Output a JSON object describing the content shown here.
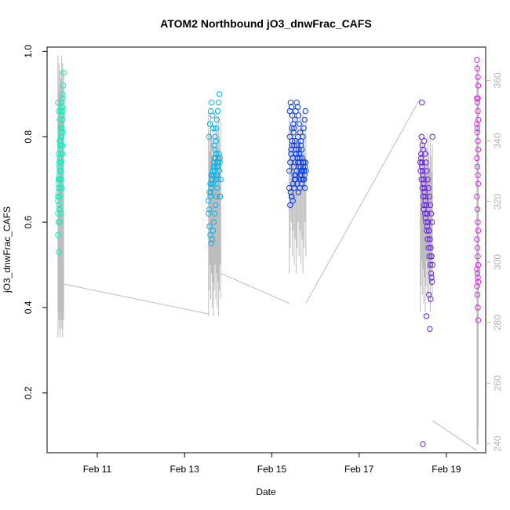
{
  "chart_data": {
    "type": "scatter",
    "title": "ATOM2 Northbound jO3_dnwFrac_CAFS",
    "xlabel": "Date",
    "ylabel": "jO3_dnwFrac_CAFS",
    "x_range_days": [
      9.85,
      19.9
    ],
    "y_range": [
      0.06,
      1.01
    ],
    "y2_range": [
      237,
      371
    ],
    "x_ticks": [
      {
        "day": 11,
        "label": "Feb 11"
      },
      {
        "day": 13,
        "label": "Feb 13"
      },
      {
        "day": 15,
        "label": "Feb 15"
      },
      {
        "day": 17,
        "label": "Feb 17"
      },
      {
        "day": 19,
        "label": "Feb 19"
      }
    ],
    "y_ticks": [
      {
        "value": 0.2,
        "label": "0.2"
      },
      {
        "value": 0.4,
        "label": "0.4"
      },
      {
        "value": 0.6,
        "label": "0.6"
      },
      {
        "value": 0.8,
        "label": "0.8"
      },
      {
        "value": 1.0,
        "label": "1.0"
      }
    ],
    "y2_ticks": [
      {
        "value": 240,
        "label": "240"
      },
      {
        "value": 260,
        "label": "260"
      },
      {
        "value": 280,
        "label": "280"
      },
      {
        "value": 300,
        "label": "300"
      },
      {
        "value": 320,
        "label": "320"
      },
      {
        "value": 340,
        "label": "340"
      },
      {
        "value": 360,
        "label": "360"
      }
    ],
    "grid": false,
    "colors": {
      "seg1": "#00f5c0",
      "seg2": "#00b4f0",
      "seg3": "#0a3cf0",
      "seg4": "#6a1cf0",
      "seg5": "#e020f0",
      "track": "#bdbdbd"
    },
    "series": [
      {
        "color_key": "seg1",
        "x": [
          10.1,
          10.11,
          10.12,
          10.13,
          10.14,
          10.15,
          10.16,
          10.17,
          10.18,
          10.19,
          10.2,
          10.21,
          10.1,
          10.11,
          10.12,
          10.13,
          10.14,
          10.15,
          10.16,
          10.17,
          10.18,
          10.19,
          10.2,
          10.21,
          10.1,
          10.12,
          10.14,
          10.16,
          10.18,
          10.2,
          10.11,
          10.13,
          10.15,
          10.17,
          10.19,
          10.21,
          10.1,
          10.12,
          10.14,
          10.16,
          10.18,
          10.2,
          10.22,
          10.11,
          10.13,
          10.15,
          10.17,
          10.19,
          10.1,
          10.12,
          10.14,
          10.16,
          10.18,
          10.2,
          10.13,
          10.15,
          10.17,
          10.19,
          10.11,
          10.14,
          10.18,
          10.21,
          10.23
        ],
        "y": [
          0.66,
          0.67,
          0.68,
          0.7,
          0.72,
          0.74,
          0.76,
          0.78,
          0.8,
          0.82,
          0.84,
          0.86,
          0.65,
          0.69,
          0.71,
          0.73,
          0.75,
          0.77,
          0.79,
          0.81,
          0.83,
          0.85,
          0.87,
          0.89,
          0.62,
          0.64,
          0.7,
          0.72,
          0.74,
          0.76,
          0.6,
          0.63,
          0.78,
          0.8,
          0.82,
          0.9,
          0.88,
          0.86,
          0.84,
          0.82,
          0.8,
          0.78,
          0.92,
          0.76,
          0.74,
          0.72,
          0.7,
          0.68,
          0.57,
          0.53,
          0.6,
          0.62,
          0.85,
          0.87,
          0.66,
          0.68,
          0.86,
          0.88,
          0.7,
          0.79,
          0.74,
          0.81,
          0.95
        ]
      },
      {
        "color_key": "seg2",
        "x": [
          13.55,
          13.57,
          13.59,
          13.61,
          13.63,
          13.65,
          13.67,
          13.69,
          13.71,
          13.73,
          13.75,
          13.77,
          13.79,
          13.81,
          13.83,
          13.55,
          13.57,
          13.59,
          13.61,
          13.63,
          13.65,
          13.67,
          13.69,
          13.71,
          13.73,
          13.75,
          13.77,
          13.79,
          13.81,
          13.56,
          13.58,
          13.6,
          13.62,
          13.64,
          13.66,
          13.68,
          13.7,
          13.72,
          13.74,
          13.76,
          13.78,
          13.8,
          13.57,
          13.59,
          13.61,
          13.63,
          13.65,
          13.67,
          13.69,
          13.71,
          13.73,
          13.75,
          13.77,
          13.79,
          13.81,
          13.6,
          13.62,
          13.64,
          13.66,
          13.68,
          13.7,
          13.72,
          13.74,
          13.76,
          13.78,
          13.82
        ],
        "y": [
          0.65,
          0.67,
          0.69,
          0.71,
          0.7,
          0.72,
          0.74,
          0.73,
          0.75,
          0.76,
          0.74,
          0.73,
          0.72,
          0.75,
          0.7,
          0.62,
          0.63,
          0.66,
          0.68,
          0.7,
          0.69,
          0.71,
          0.72,
          0.7,
          0.71,
          0.73,
          0.74,
          0.76,
          0.66,
          0.8,
          0.83,
          0.86,
          0.88,
          0.85,
          0.82,
          0.78,
          0.8,
          0.82,
          0.84,
          0.86,
          0.88,
          0.9,
          0.59,
          0.57,
          0.55,
          0.56,
          0.58,
          0.6,
          0.62,
          0.64,
          0.66,
          0.68,
          0.7,
          0.72,
          0.74,
          0.67,
          0.69,
          0.71,
          0.73,
          0.75,
          0.77,
          0.79,
          0.71,
          0.73,
          0.75,
          0.66
        ]
      },
      {
        "color_key": "seg3",
        "x": [
          15.4,
          15.42,
          15.44,
          15.46,
          15.48,
          15.5,
          15.52,
          15.54,
          15.56,
          15.58,
          15.6,
          15.62,
          15.64,
          15.66,
          15.68,
          15.7,
          15.72,
          15.74,
          15.76,
          15.78,
          15.41,
          15.43,
          15.45,
          15.47,
          15.49,
          15.51,
          15.53,
          15.55,
          15.57,
          15.59,
          15.61,
          15.63,
          15.65,
          15.67,
          15.69,
          15.71,
          15.73,
          15.75,
          15.77,
          15.4,
          15.43,
          15.46,
          15.49,
          15.52,
          15.55,
          15.58,
          15.61,
          15.64,
          15.67,
          15.7,
          15.73,
          15.76,
          15.42,
          15.45,
          15.48,
          15.51,
          15.54,
          15.57,
          15.6,
          15.63,
          15.66,
          15.69,
          15.72,
          15.75,
          15.44,
          15.47,
          15.5,
          15.53,
          15.56,
          15.59,
          15.62,
          15.65,
          15.68,
          15.71,
          15.74,
          15.77,
          15.41,
          15.46,
          15.51,
          15.56,
          15.61,
          15.66,
          15.71
        ],
        "y": [
          0.72,
          0.74,
          0.76,
          0.78,
          0.75,
          0.73,
          0.71,
          0.74,
          0.76,
          0.78,
          0.8,
          0.77,
          0.75,
          0.73,
          0.71,
          0.72,
          0.74,
          0.7,
          0.68,
          0.72,
          0.86,
          0.88,
          0.87,
          0.85,
          0.83,
          0.82,
          0.84,
          0.86,
          0.88,
          0.87,
          0.85,
          0.83,
          0.81,
          0.79,
          0.77,
          0.8,
          0.82,
          0.84,
          0.86,
          0.68,
          0.67,
          0.66,
          0.69,
          0.7,
          0.71,
          0.69,
          0.67,
          0.68,
          0.7,
          0.72,
          0.74,
          0.73,
          0.64,
          0.66,
          0.65,
          0.68,
          0.7,
          0.72,
          0.74,
          0.76,
          0.78,
          0.75,
          0.73,
          0.71,
          0.77,
          0.79,
          0.81,
          0.79,
          0.77,
          0.75,
          0.73,
          0.71,
          0.69,
          0.7,
          0.72,
          0.74,
          0.8,
          0.82,
          0.78,
          0.76,
          0.74,
          0.72,
          0.7
        ]
      },
      {
        "color_key": "seg4",
        "x": [
          18.4,
          18.42,
          18.44,
          18.46,
          18.48,
          18.5,
          18.52,
          18.54,
          18.56,
          18.58,
          18.6,
          18.62,
          18.64,
          18.66,
          18.68,
          18.41,
          18.43,
          18.45,
          18.47,
          18.49,
          18.51,
          18.53,
          18.55,
          18.57,
          18.59,
          18.61,
          18.63,
          18.65,
          18.67,
          18.42,
          18.44,
          18.46,
          18.48,
          18.5,
          18.52,
          18.54,
          18.56,
          18.58,
          18.6,
          18.62,
          18.64,
          18.66,
          18.43,
          18.45,
          18.47,
          18.49,
          18.51,
          18.53,
          18.55,
          18.57,
          18.59,
          18.61,
          18.63,
          18.65,
          18.67,
          18.44,
          18.48,
          18.52,
          18.56,
          18.6,
          18.64,
          18.68,
          18.46,
          18.54,
          18.62,
          18.66
        ],
        "y": [
          0.74,
          0.75,
          0.73,
          0.71,
          0.69,
          0.67,
          0.65,
          0.64,
          0.62,
          0.6,
          0.58,
          0.56,
          0.54,
          0.52,
          0.5,
          0.72,
          0.7,
          0.68,
          0.66,
          0.64,
          0.62,
          0.6,
          0.58,
          0.56,
          0.54,
          0.52,
          0.5,
          0.48,
          0.46,
          0.76,
          0.74,
          0.72,
          0.7,
          0.68,
          0.66,
          0.64,
          0.62,
          0.6,
          0.58,
          0.56,
          0.54,
          0.52,
          0.8,
          0.78,
          0.77,
          0.79,
          0.76,
          0.74,
          0.72,
          0.7,
          0.68,
          0.66,
          0.64,
          0.62,
          0.6,
          0.88,
          0.63,
          0.61,
          0.59,
          0.43,
          0.42,
          0.8,
          0.08,
          0.38,
          0.35,
          0.47
        ]
      },
      {
        "color_key": "seg5",
        "x": [
          19.7,
          19.71,
          19.72,
          19.73,
          19.7,
          19.71,
          19.72,
          19.73,
          19.7,
          19.71,
          19.72,
          19.73,
          19.7,
          19.71,
          19.72,
          19.73,
          19.7,
          19.71,
          19.72,
          19.73,
          19.7,
          19.71,
          19.72,
          19.73,
          19.7,
          19.71,
          19.72,
          19.73,
          19.7,
          19.71,
          19.72,
          19.73,
          19.71,
          19.72
        ],
        "y": [
          0.98,
          0.96,
          0.94,
          0.92,
          0.89,
          0.88,
          0.86,
          0.84,
          0.83,
          0.81,
          0.79,
          0.77,
          0.75,
          0.73,
          0.71,
          0.69,
          0.66,
          0.63,
          0.6,
          0.58,
          0.56,
          0.54,
          0.52,
          0.5,
          0.49,
          0.48,
          0.47,
          0.46,
          0.45,
          0.43,
          0.4,
          0.37,
          0.82,
          0.89
        ]
      }
    ]
  }
}
